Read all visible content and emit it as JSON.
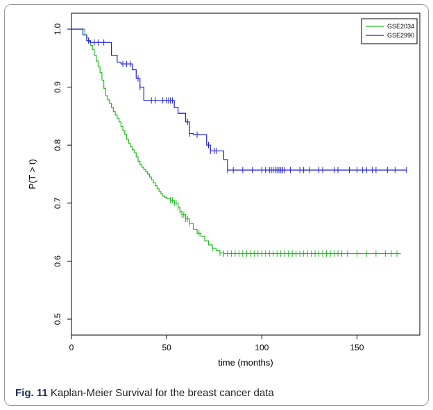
{
  "caption": {
    "label": "Fig. 11",
    "text": " Kaplan-Meier Survival for the breast cancer data"
  },
  "chart_data": {
    "type": "line",
    "title": "",
    "xlabel": "time (months)",
    "ylabel": "P(T > t)",
    "xlim": [
      0,
      176
    ],
    "ylim": [
      0.5,
      1.0
    ],
    "x_ticks": [
      0,
      50,
      100,
      150
    ],
    "y_ticks": [
      0.5,
      0.6,
      0.7,
      0.8,
      0.9,
      1.0
    ],
    "x_tick_labels": [
      "0",
      "50",
      "100",
      "150"
    ],
    "y_tick_labels": [
      "0.5",
      "0.6",
      "0.7",
      "0.8",
      "0.9",
      "1.0"
    ],
    "grid": false,
    "legend_position": "top-right",
    "step": true,
    "series": [
      {
        "name": "GSE2034",
        "color": "#22bb22",
        "x": [
          0,
          7,
          8,
          9,
          10,
          11,
          12,
          13,
          14,
          15,
          16,
          17,
          18,
          19,
          20,
          21,
          22,
          23,
          24,
          25,
          26,
          27,
          28,
          29,
          30,
          31,
          32,
          33,
          34,
          35,
          36,
          37,
          38,
          39,
          40,
          41,
          42,
          43,
          44,
          45,
          46,
          47,
          48,
          49,
          50,
          52,
          54,
          56,
          57,
          58,
          60,
          62,
          64,
          66,
          68,
          70,
          72,
          74,
          76,
          78,
          80,
          173
        ],
        "y": [
          1.0,
          0.99,
          0.985,
          0.978,
          0.972,
          0.965,
          0.955,
          0.945,
          0.935,
          0.925,
          0.912,
          0.898,
          0.885,
          0.878,
          0.872,
          0.865,
          0.858,
          0.852,
          0.846,
          0.84,
          0.832,
          0.825,
          0.818,
          0.81,
          0.803,
          0.797,
          0.792,
          0.787,
          0.78,
          0.772,
          0.766,
          0.762,
          0.758,
          0.754,
          0.75,
          0.745,
          0.74,
          0.735,
          0.73,
          0.725,
          0.72,
          0.716,
          0.712,
          0.71,
          0.708,
          0.705,
          0.7,
          0.693,
          0.686,
          0.68,
          0.673,
          0.665,
          0.655,
          0.648,
          0.643,
          0.635,
          0.628,
          0.622,
          0.618,
          0.614,
          0.613,
          0.613
        ]
      },
      {
        "name": "GSE2990",
        "color": "#2222cc",
        "x": [
          0,
          6,
          8,
          10,
          21,
          24,
          26,
          32,
          34,
          36,
          38,
          54,
          56,
          60,
          62,
          64,
          71,
          73,
          80,
          82,
          176
        ],
        "y": [
          1.0,
          0.99,
          0.98,
          0.977,
          0.955,
          0.943,
          0.94,
          0.93,
          0.915,
          0.9,
          0.877,
          0.865,
          0.855,
          0.84,
          0.82,
          0.818,
          0.8,
          0.79,
          0.775,
          0.757,
          0.757
        ]
      }
    ],
    "censor_marks": {
      "GSE2034": [
        52,
        53,
        54,
        55,
        56,
        57,
        58,
        59,
        60,
        61,
        62,
        67,
        74,
        78,
        80,
        82,
        84,
        86,
        88,
        90,
        92,
        94,
        96,
        98,
        100,
        102,
        104,
        106,
        108,
        110,
        112,
        114,
        116,
        118,
        120,
        122,
        124,
        126,
        128,
        130,
        132,
        134,
        136,
        138,
        140,
        142,
        145,
        150,
        155,
        160,
        165,
        168,
        171
      ],
      "GSE2990": [
        9,
        12,
        14,
        17,
        27,
        29,
        31,
        35,
        36,
        42,
        44,
        48,
        50,
        51,
        52,
        53,
        61,
        62,
        66,
        72,
        73,
        75,
        76,
        82,
        85,
        90,
        95,
        100,
        102,
        104,
        105,
        106,
        107,
        108,
        109,
        110,
        111,
        112,
        115,
        120,
        122,
        125,
        130,
        132,
        138,
        140,
        146,
        150,
        153,
        155,
        158,
        160,
        166,
        170,
        176
      ]
    }
  }
}
